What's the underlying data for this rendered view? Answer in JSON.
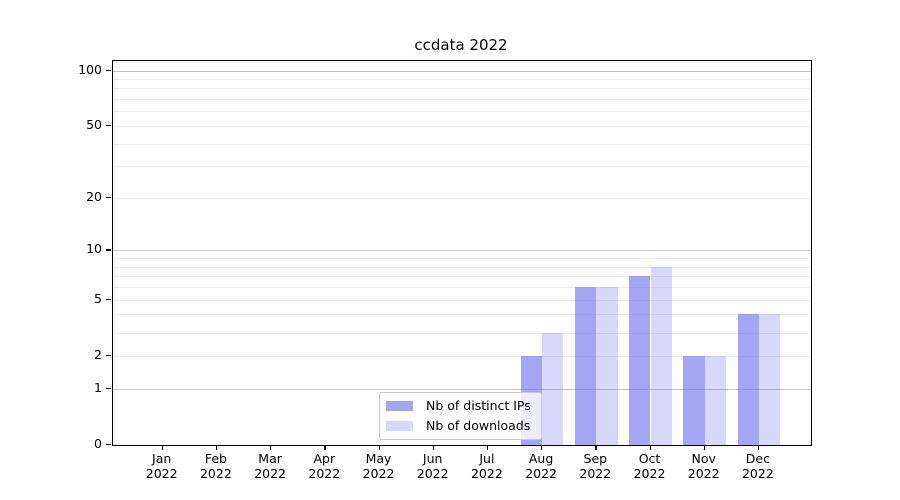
{
  "chart_data": {
    "type": "bar",
    "title": "ccdata 2022",
    "categories": [
      "Jan 2022",
      "Feb 2022",
      "Mar 2022",
      "Apr 2022",
      "May 2022",
      "Jun 2022",
      "Jul 2022",
      "Aug 2022",
      "Sep 2022",
      "Oct 2022",
      "Nov 2022",
      "Dec 2022"
    ],
    "series": [
      {
        "name": "Nb of distinct IPs",
        "fill": "rgba(110,110,235,0.62)",
        "legend_color": "#a5a5f2",
        "values": [
          0,
          0,
          0,
          0,
          0,
          0,
          0,
          2,
          6,
          7,
          2,
          4
        ]
      },
      {
        "name": "Nb of downloads",
        "fill": "rgba(110,110,235,0.27)",
        "legend_color": "#d8d8fa",
        "values": [
          0,
          0,
          0,
          0,
          0,
          0,
          0,
          3,
          6,
          8,
          2,
          4
        ]
      }
    ],
    "xlabel": "",
    "ylabel": "",
    "y_scale": "symlog-log1p",
    "ylim": [
      0,
      112.5
    ],
    "y_ticks": [
      0,
      1,
      2,
      5,
      10,
      20,
      50,
      100
    ],
    "grid": {
      "on": true,
      "major_values": [
        1,
        10,
        100
      ],
      "minor_values": [
        2,
        3,
        4,
        5,
        6,
        7,
        8,
        9,
        20,
        30,
        40,
        50,
        60,
        70,
        80,
        90
      ],
      "major_color": "#c3c3c3",
      "minor_color": "#ececec"
    },
    "legend": {
      "position": "lower center",
      "entries": [
        "Nb of distinct IPs",
        "Nb of downloads"
      ]
    },
    "colors": {
      "bar_dark": "#a5a5f2",
      "bar_light": "#d8d8fa",
      "axis": "#000000",
      "background": "#ffffff"
    }
  }
}
